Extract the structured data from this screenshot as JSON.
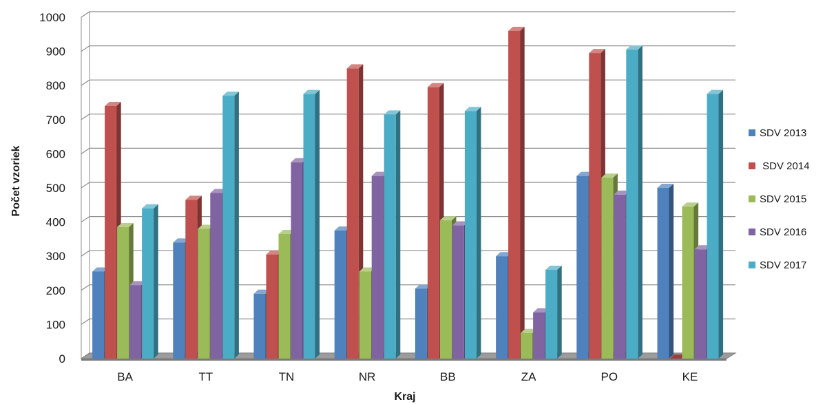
{
  "chart_data": {
    "type": "bar",
    "title": "",
    "xlabel": "Kraj",
    "ylabel": "Počet vzoriek",
    "ylim": [
      0,
      1000
    ],
    "yticks": [
      0,
      100,
      200,
      300,
      400,
      500,
      600,
      700,
      800,
      900,
      1000
    ],
    "grid": true,
    "legend_position": "right",
    "categories": [
      "BA",
      "TT",
      "TN",
      "NR",
      "BB",
      "ZA",
      "PO",
      "KE"
    ],
    "series": [
      {
        "name": "SDV 2013",
        "color": "#4F81BD",
        "values": [
          255,
          340,
          190,
          375,
          205,
          300,
          535,
          500
        ]
      },
      {
        "name": " SDV 2014",
        "color": "#C0504D",
        "values": [
          740,
          465,
          305,
          850,
          795,
          960,
          895,
          0
        ]
      },
      {
        "name": "SDV 2015",
        "color": "#9BBB59",
        "values": [
          385,
          380,
          365,
          255,
          405,
          75,
          530,
          445
        ]
      },
      {
        "name": "SDV 2016",
        "color": "#8064A2",
        "values": [
          215,
          485,
          575,
          535,
          390,
          135,
          480,
          320
        ]
      },
      {
        "name": "SDV 2017",
        "color": "#4BACC6",
        "values": [
          440,
          770,
          775,
          715,
          725,
          260,
          905,
          775
        ]
      }
    ]
  }
}
